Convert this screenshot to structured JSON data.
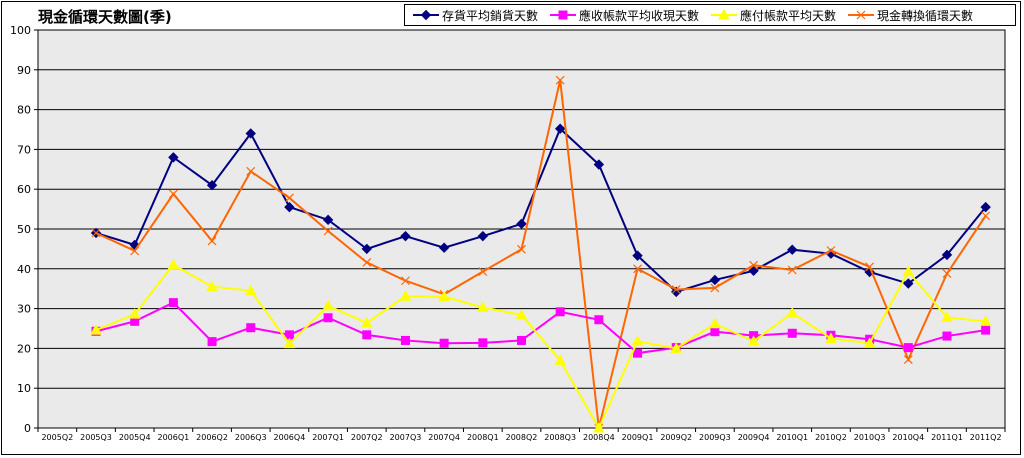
{
  "chart_data": {
    "type": "line",
    "title": "現金循環天數圖(季)",
    "categories": [
      "2005Q2",
      "2005Q3",
      "2005Q4",
      "2006Q1",
      "2006Q2",
      "2006Q3",
      "2006Q4",
      "2007Q1",
      "2007Q2",
      "2007Q3",
      "2007Q4",
      "2008Q1",
      "2008Q2",
      "2008Q3",
      "2008Q4",
      "2009Q1",
      "2009Q2",
      "2009Q3",
      "2009Q4",
      "2010Q1",
      "2010Q2",
      "2010Q3",
      "2010Q4",
      "2011Q1",
      "2011Q2"
    ],
    "ylim": [
      0,
      100
    ],
    "yticks": [
      0,
      10,
      20,
      30,
      40,
      50,
      60,
      70,
      80,
      90,
      100
    ],
    "grid": true,
    "legend_position": "top-right",
    "series": [
      {
        "name": "存貨平均銷貨天數",
        "color": "#000080",
        "marker": "diamond",
        "values": [
          null,
          49,
          46,
          68,
          61,
          74,
          55.5,
          52.3,
          45,
          48.2,
          45.3,
          48.2,
          51.3,
          75.2,
          66.2,
          43.3,
          34.2,
          37.2,
          39.5,
          44.8,
          43.8,
          39.2,
          36.3,
          43.5,
          55.5
        ]
      },
      {
        "name": "應收帳款平均收現天數",
        "color": "#FF00FF",
        "marker": "square",
        "values": [
          null,
          24.3,
          26.8,
          31.5,
          21.7,
          25.2,
          23.4,
          27.7,
          23.4,
          22,
          21.3,
          21.4,
          22,
          29.2,
          27.2,
          18.8,
          20.2,
          24.2,
          23.2,
          23.8,
          23.3,
          22.3,
          20.2,
          23.1,
          24.6
        ]
      },
      {
        "name": "應付帳款平均天數",
        "color": "#FFFF00",
        "marker": "triangle",
        "values": [
          null,
          24.6,
          28.6,
          41,
          35.5,
          34.5,
          21.2,
          30.7,
          26.4,
          33.1,
          33,
          30.3,
          28.4,
          17,
          0,
          21.8,
          20,
          26.2,
          21.8,
          28.9,
          22.5,
          21.3,
          39.3,
          27.8,
          26.8
        ]
      },
      {
        "name": "現金轉換循環天數",
        "color": "#FF6600",
        "marker": "x",
        "values": [
          null,
          49,
          44.5,
          58.8,
          47,
          64.5,
          57.8,
          49.5,
          41.6,
          37,
          33.6,
          39.3,
          44.9,
          87.4,
          0,
          40,
          34.8,
          35.2,
          40.9,
          39.7,
          44.6,
          40.5,
          17.2,
          38.8,
          53.3
        ]
      }
    ]
  }
}
